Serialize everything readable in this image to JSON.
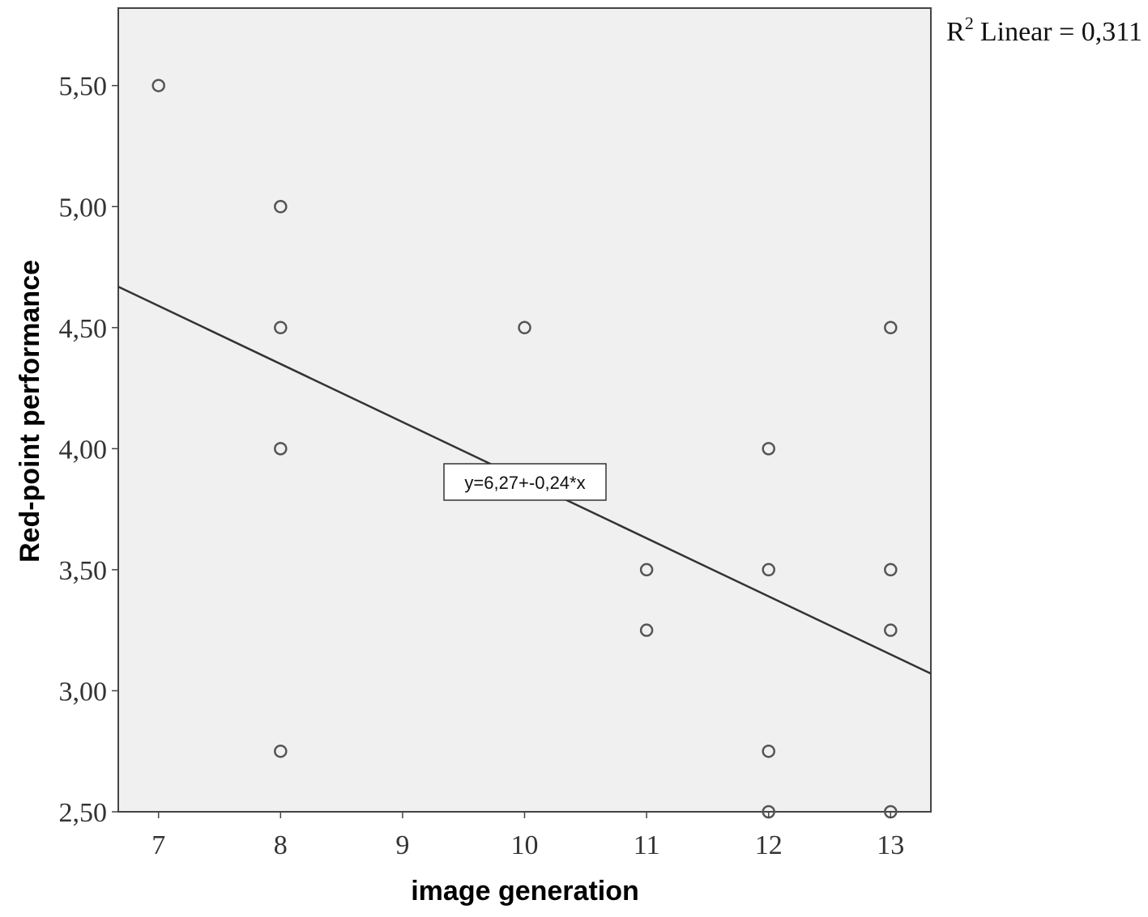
{
  "chart_data": {
    "type": "scatter",
    "title": "",
    "xlabel": "image generation",
    "ylabel": "Red-point performance",
    "xlim": [
      6.67,
      13.33
    ],
    "ylim": [
      2.5,
      5.82
    ],
    "x_ticks": [
      7,
      8,
      9,
      10,
      11,
      12,
      13
    ],
    "x_tick_labels": [
      "7",
      "8",
      "9",
      "10",
      "11",
      "12",
      "13"
    ],
    "y_ticks": [
      2.5,
      3.0,
      3.5,
      4.0,
      4.5,
      5.0,
      5.5
    ],
    "y_tick_labels": [
      "2,50",
      "3,00",
      "3,50",
      "4,00",
      "4,50",
      "5,00",
      "5,50"
    ],
    "grid": false,
    "background": "#f0f0f0",
    "marker_color": "#555555",
    "line_color": "#333333",
    "series": [
      {
        "points": [
          {
            "x": 7,
            "y": 5.5
          },
          {
            "x": 8,
            "y": 5.0
          },
          {
            "x": 8,
            "y": 4.5
          },
          {
            "x": 8,
            "y": 4.0
          },
          {
            "x": 8,
            "y": 2.75
          },
          {
            "x": 10,
            "y": 4.5
          },
          {
            "x": 11,
            "y": 3.5
          },
          {
            "x": 11,
            "y": 3.25
          },
          {
            "x": 12,
            "y": 4.0
          },
          {
            "x": 12,
            "y": 3.5
          },
          {
            "x": 12,
            "y": 2.75
          },
          {
            "x": 12,
            "y": 2.5
          },
          {
            "x": 13,
            "y": 4.5
          },
          {
            "x": 13,
            "y": 3.5
          },
          {
            "x": 13,
            "y": 3.25
          },
          {
            "x": 13,
            "y": 2.5
          }
        ]
      }
    ],
    "fit_line": {
      "type": "linear",
      "intercept": 6.27,
      "slope": -0.24,
      "equation_label": "y=6,27+-0,24*x",
      "r2_label": "Linear = 0,311",
      "r2_prefix": "R",
      "r2_superscript": "2"
    }
  }
}
